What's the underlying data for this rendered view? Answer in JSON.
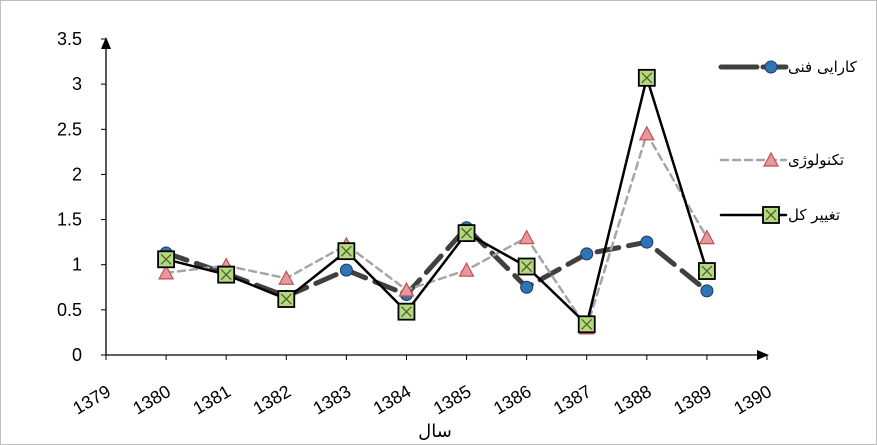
{
  "chart_data": {
    "type": "line",
    "xlabel": "سال",
    "ylabel": "",
    "x": [
      1380,
      1381,
      1382,
      1383,
      1384,
      1385,
      1386,
      1387,
      1388,
      1389
    ],
    "xlim": [
      1379,
      1390
    ],
    "ylim": [
      0,
      3.5
    ],
    "x_ticks": [
      "1379",
      "1380",
      "1381",
      "1382",
      "1383",
      "1384",
      "1385",
      "1386",
      "1387",
      "1388",
      "1389",
      "1390"
    ],
    "y_ticks": [
      "0",
      "0.5",
      "1",
      "1.5",
      "2",
      "2.5",
      "3",
      "3.5"
    ],
    "grid": false,
    "legend_position": "right",
    "series": [
      {
        "name": "کارایی فنی",
        "values": [
          1.13,
          0.9,
          0.65,
          0.94,
          0.67,
          1.41,
          0.75,
          1.12,
          1.25,
          0.71
        ],
        "color": "#404040",
        "marker": "circle",
        "marker_fill": "#2e75b6",
        "line_style": "long-dash-thick"
      },
      {
        "name": "تکنولوژی",
        "values": [
          0.91,
          0.99,
          0.85,
          1.22,
          0.72,
          0.94,
          1.3,
          0.3,
          2.45,
          1.3
        ],
        "color": "#a6a6a6",
        "marker": "triangle",
        "marker_fill": "#e6999c",
        "line_style": "short-dash"
      },
      {
        "name": "تغییر کل",
        "values": [
          1.06,
          0.89,
          0.62,
          1.15,
          0.48,
          1.35,
          0.98,
          0.34,
          3.07,
          0.93
        ],
        "color": "#000000",
        "marker": "square-x",
        "marker_fill": "#b5d882",
        "line_style": "solid"
      }
    ]
  }
}
